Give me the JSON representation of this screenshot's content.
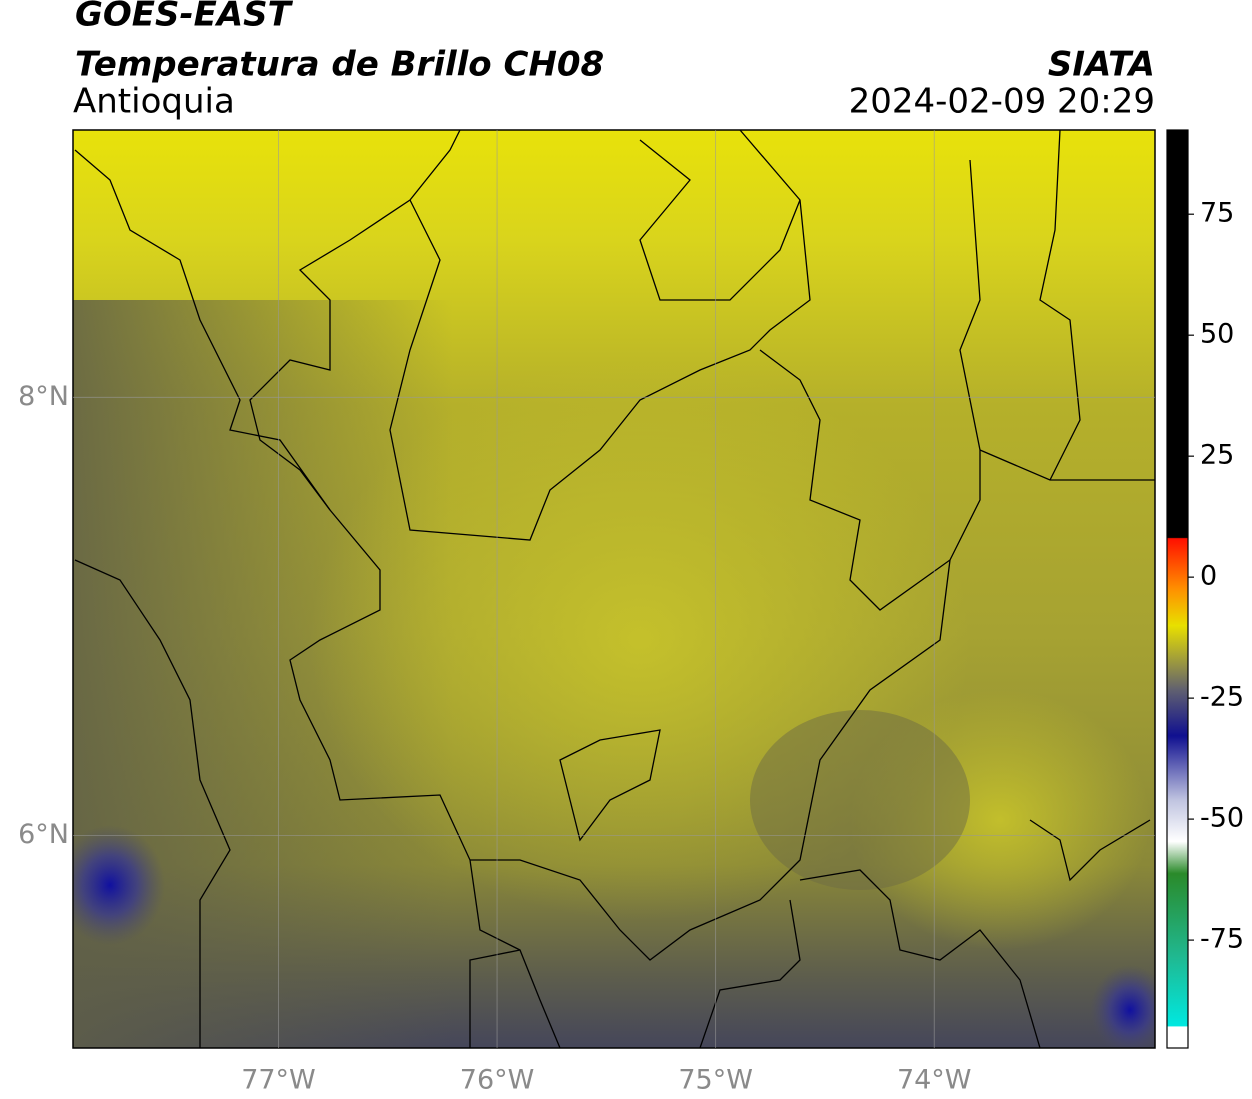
{
  "chart_data": {
    "type": "map",
    "title": "GOES-EAST",
    "subtitle": "Temperatura de Brillo CH08",
    "region": "Antioquia",
    "source": "SIATA",
    "timestamp": "2024-02-09 20:29",
    "xlim": [
      -77.94,
      -72.99
    ],
    "ylim": [
      5.03,
      9.22
    ],
    "xticks": [
      {
        "value": -77,
        "label": "77°W"
      },
      {
        "value": -76,
        "label": "76°W"
      },
      {
        "value": -75,
        "label": "75°W"
      },
      {
        "value": -74,
        "label": "74°W"
      }
    ],
    "yticks": [
      {
        "value": 6,
        "label": "6°N"
      },
      {
        "value": 8,
        "label": "8°N"
      }
    ],
    "grid": true,
    "colorbar": {
      "lim": [
        -97.3,
        92.4
      ],
      "ticks": [
        -75,
        -50,
        -25,
        0,
        25,
        50,
        75
      ]
    }
  }
}
